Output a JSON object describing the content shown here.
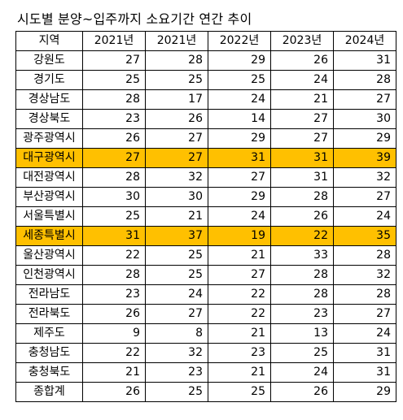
{
  "title": "시도별 분양~입주까지 소요기간 연간 추이",
  "highlight_color": "#ffc000",
  "table": {
    "headers": [
      "지역",
      "2021년",
      "2021년",
      "2022년",
      "2023년",
      "2024년"
    ],
    "rows": [
      {
        "region": "강원도",
        "values": [
          "27",
          "28",
          "29",
          "26",
          "31"
        ],
        "highlight": false
      },
      {
        "region": "경기도",
        "values": [
          "25",
          "25",
          "25",
          "24",
          "28"
        ],
        "highlight": false
      },
      {
        "region": "경상남도",
        "values": [
          "28",
          "17",
          "24",
          "21",
          "27"
        ],
        "highlight": false
      },
      {
        "region": "경상북도",
        "values": [
          "23",
          "26",
          "14",
          "27",
          "30"
        ],
        "highlight": false
      },
      {
        "region": "광주광역시",
        "values": [
          "26",
          "27",
          "29",
          "27",
          "29"
        ],
        "highlight": false
      },
      {
        "region": "대구광역시",
        "values": [
          "27",
          "27",
          "31",
          "31",
          "39"
        ],
        "highlight": true
      },
      {
        "region": "대전광역시",
        "values": [
          "28",
          "32",
          "27",
          "31",
          "32"
        ],
        "highlight": false
      },
      {
        "region": "부산광역시",
        "values": [
          "30",
          "30",
          "29",
          "28",
          "27"
        ],
        "highlight": false
      },
      {
        "region": "서울특별시",
        "values": [
          "25",
          "21",
          "24",
          "26",
          "24"
        ],
        "highlight": false
      },
      {
        "region": "세종특별시",
        "values": [
          "31",
          "37",
          "19",
          "22",
          "35"
        ],
        "highlight": true
      },
      {
        "region": "울산광역시",
        "values": [
          "22",
          "25",
          "21",
          "33",
          "28"
        ],
        "highlight": false
      },
      {
        "region": "인천광역시",
        "values": [
          "28",
          "25",
          "27",
          "28",
          "32"
        ],
        "highlight": false
      },
      {
        "region": "전라남도",
        "values": [
          "23",
          "24",
          "22",
          "28",
          "28"
        ],
        "highlight": false
      },
      {
        "region": "전라북도",
        "values": [
          "26",
          "27",
          "22",
          "23",
          "27"
        ],
        "highlight": false
      },
      {
        "region": "제주도",
        "values": [
          "9",
          "8",
          "21",
          "13",
          "24"
        ],
        "highlight": false
      },
      {
        "region": "충청남도",
        "values": [
          "22",
          "32",
          "23",
          "25",
          "31"
        ],
        "highlight": false
      },
      {
        "region": "충청북도",
        "values": [
          "21",
          "23",
          "21",
          "24",
          "31"
        ],
        "highlight": false
      },
      {
        "region": "종합계",
        "values": [
          "26",
          "25",
          "25",
          "26",
          "29"
        ],
        "highlight": false
      }
    ]
  }
}
